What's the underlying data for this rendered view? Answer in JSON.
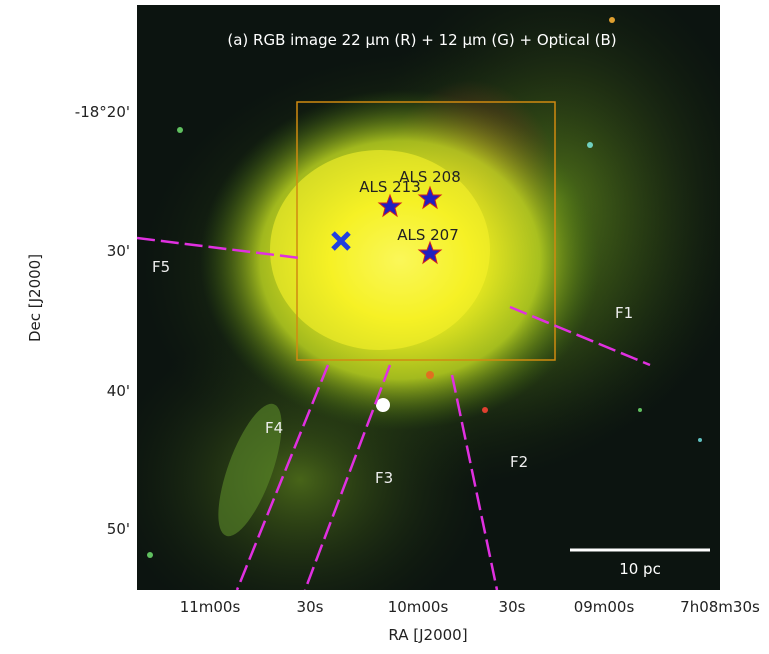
{
  "figure": {
    "title": "(a) RGB image 22 µm  (R) + 12 µm   (G) +  Optical (B)",
    "x_label": "RA [J2000]",
    "y_label": "Dec [J2000]",
    "x_ticks": [
      "11m00s",
      "30s",
      "10m00s",
      "30s",
      "09m00s",
      "7h08m30s"
    ],
    "y_ticks": [
      "-18°20'",
      "30'",
      "40'",
      "50'"
    ],
    "stars": [
      "ALS 208",
      "ALS 213",
      "ALS 207"
    ],
    "filaments": [
      "F1",
      "F2",
      "F3",
      "F4",
      "F5"
    ],
    "scale_bar": "10 pc"
  }
}
